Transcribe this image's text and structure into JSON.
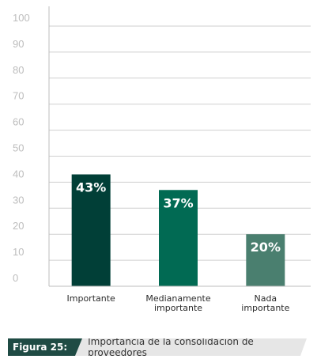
{
  "chart_data": {
    "type": "bar",
    "categories": [
      [
        "Importante"
      ],
      [
        "Medianamente",
        "importante"
      ],
      [
        "Nada",
        "importante"
      ]
    ],
    "values": [
      43,
      37,
      20
    ],
    "value_labels": [
      "43%",
      "37%",
      "20%"
    ],
    "bar_colors": [
      "#013f37",
      "#016a53",
      "#4a7f6f"
    ],
    "yticks": [
      "0",
      "10",
      "20",
      "30",
      "40",
      "50",
      "60",
      "70",
      "80",
      "90",
      "100"
    ],
    "ylim": [
      0,
      100
    ],
    "grid": true
  },
  "caption": {
    "tag": "Figura 25:",
    "text": "Importancia de la consolidación de proveedores"
  }
}
